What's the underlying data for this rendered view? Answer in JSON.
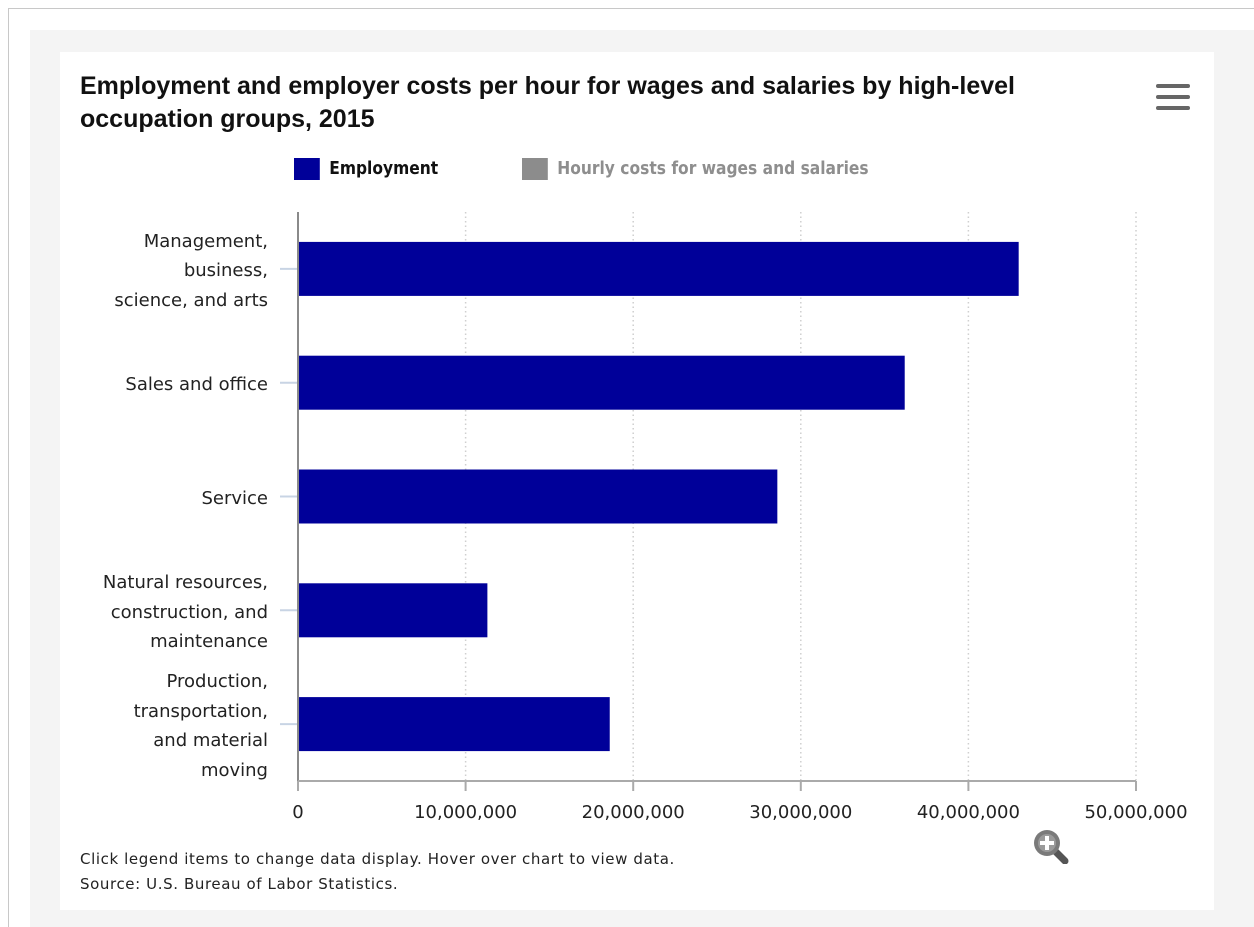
{
  "chart_data": {
    "type": "bar",
    "orientation": "horizontal",
    "title": "Employment and employer costs per hour for wages and salaries by high-level occupation groups, 2015",
    "categories": [
      "Management, business, science, and arts",
      "Sales and office",
      "Service",
      "Natural resources, construction, and maintenance",
      "Production, transportation, and material moving"
    ],
    "category_display_lines": [
      [
        "Management,",
        "business,",
        "science, and arts"
      ],
      [
        "Sales and office"
      ],
      [
        "Service"
      ],
      [
        "Natural resources,",
        "construction, and",
        "maintenance"
      ],
      [
        "Production,",
        "transportation,",
        "and material",
        "moving"
      ]
    ],
    "series": [
      {
        "name": "Employment",
        "color": "#000099",
        "visible": true,
        "values": [
          43000000,
          36200000,
          28600000,
          11300000,
          18600000
        ]
      },
      {
        "name": "Hourly costs for wages and salaries",
        "color": "#8c8c8c",
        "visible": false
      }
    ],
    "xlim": [
      0,
      50000000
    ],
    "x_ticks": [
      0,
      10000000,
      20000000,
      30000000,
      40000000,
      50000000
    ],
    "x_tick_labels": [
      "0",
      "10,000,000",
      "20,000,000",
      "30,000,000",
      "40,000,000",
      "50,000,000"
    ],
    "xlabel": "",
    "ylabel": "",
    "grid": "vertical dotted",
    "legend_position": "top"
  },
  "footer": {
    "note": "Click legend items to change data display. Hover over chart to view data.",
    "source": "Source: U.S. Bureau of Labor Statistics."
  },
  "icons": {
    "menu": "hamburger-menu-icon",
    "zoom": "zoom-in-icon"
  }
}
